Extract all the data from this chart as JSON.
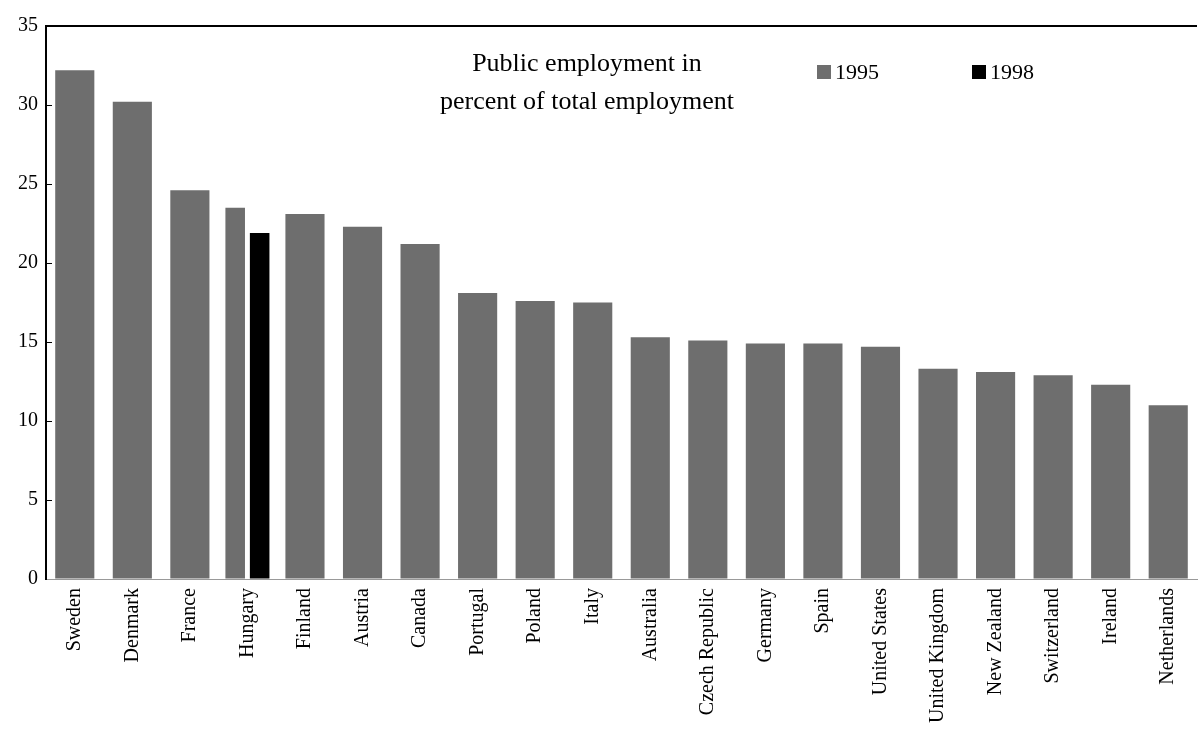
{
  "chart_data": {
    "type": "bar",
    "title": "Public employment in percent of total employment",
    "categories": [
      "Sweden",
      "Denmark",
      "France",
      "Hungary",
      "Finland",
      "Austria",
      "Canada",
      "Portugal",
      "Poland",
      "Italy",
      "Australia",
      "Czech Republic",
      "Germany",
      "Spain",
      "United States",
      "United Kingdom",
      "New Zealand",
      "Switzerland",
      "Ireland",
      "Netherlands"
    ],
    "series": [
      {
        "name": "1995",
        "color": "#6e6e6e",
        "values": [
          32.2,
          30.2,
          24.6,
          23.5,
          23.1,
          22.3,
          21.2,
          18.1,
          17.6,
          17.5,
          15.3,
          15.1,
          14.9,
          14.9,
          14.7,
          13.3,
          13.1,
          12.9,
          12.3,
          11.0
        ]
      },
      {
        "name": "1998",
        "color": "#000000",
        "values": [
          null,
          null,
          null,
          21.9,
          null,
          null,
          null,
          null,
          null,
          null,
          null,
          null,
          null,
          null,
          null,
          null,
          null,
          null,
          null,
          null
        ]
      }
    ],
    "ylim": [
      0,
      35
    ],
    "yticks": [
      0,
      5,
      10,
      15,
      20,
      25,
      30,
      35
    ],
    "grid": false,
    "legend": "top right"
  }
}
